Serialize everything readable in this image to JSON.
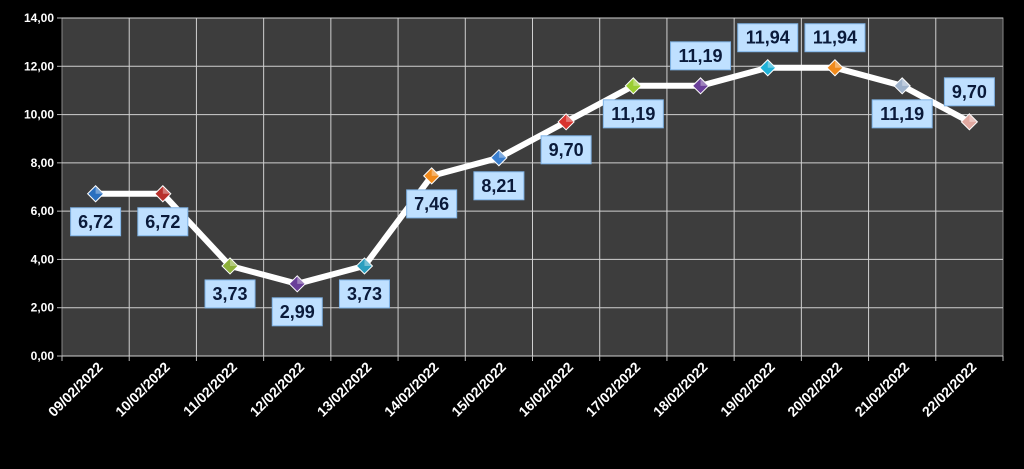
{
  "chart_data": {
    "type": "line",
    "categories": [
      "09/02/2022",
      "10/02/2022",
      "11/02/2022",
      "12/02/2022",
      "13/02/2022",
      "14/02/2022",
      "15/02/2022",
      "16/02/2022",
      "17/02/2022",
      "18/02/2022",
      "19/02/2022",
      "20/02/2022",
      "21/02/2022",
      "22/02/2022"
    ],
    "values": [
      6.72,
      6.72,
      3.73,
      2.99,
      3.73,
      7.46,
      8.21,
      9.7,
      11.19,
      11.19,
      11.94,
      11.94,
      11.19,
      9.7
    ],
    "data_labels": [
      "6,72",
      "6,72",
      "3,73",
      "2,99",
      "3,73",
      "7,46",
      "8,21",
      "9,70",
      "11,19",
      "11,19",
      "11,94",
      "11,94",
      "11,19",
      "9,70"
    ],
    "label_positions": [
      "below",
      "below",
      "below",
      "below",
      "below",
      "below",
      "below",
      "below",
      "below",
      "above",
      "above",
      "above",
      "below",
      "above"
    ],
    "y_tick_labels": [
      "0,00",
      "2,00",
      "4,00",
      "6,00",
      "8,00",
      "10,00",
      "12,00",
      "14,00"
    ],
    "ylim": [
      0,
      14
    ],
    "y_step": 2,
    "grid": true,
    "title": "",
    "xlabel": "",
    "ylabel": "",
    "colors": {
      "background": "#000000",
      "plot_area": "#3d3d3d",
      "grid": "#d0d0d0",
      "line": "#ffffff",
      "label_fill": "#bfe0ff",
      "label_text": "#0a1a3a",
      "axis_text": "#ffffff",
      "markers": [
        "#2a6fbf",
        "#b8302a",
        "#8db03a",
        "#6a3f99",
        "#2a9fbf",
        "#f08a1c",
        "#3a7fcf",
        "#d8332e",
        "#9acd32",
        "#6a3f99",
        "#20b2d8",
        "#f08a1c",
        "#9fb3cc",
        "#e0a8a0"
      ]
    }
  }
}
